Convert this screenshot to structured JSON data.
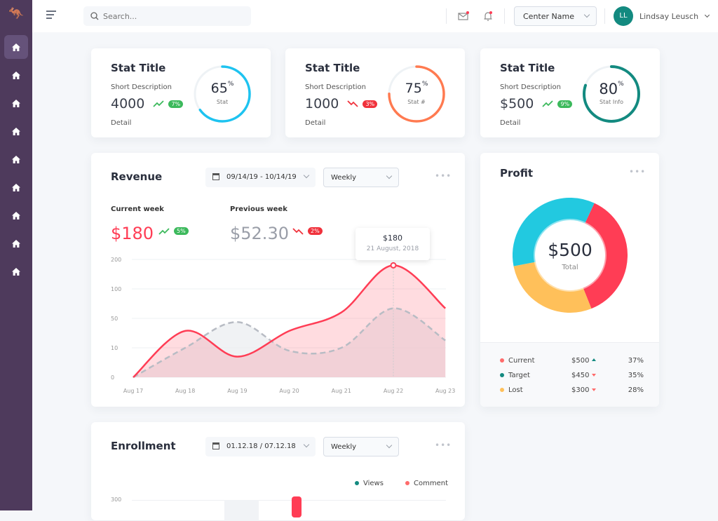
{
  "colors": {
    "sidebar": "#4e3a5c",
    "blue": "#1ec3f0",
    "orange": "#ff7a50",
    "teal": "#138a80",
    "red": "#ff3d55",
    "yellow": "#ffc05a",
    "cyan": "#22c9e0"
  },
  "sidebar": {
    "logo": "kangaroo-logo",
    "items": 9
  },
  "topbar": {
    "search_placeholder": "Search...",
    "center": "Center Name",
    "avatar": "LL",
    "user": "Lindsay Leusch"
  },
  "stats": [
    {
      "title": "Stat Title",
      "desc": "Short Description",
      "value": "4000",
      "trend": "up",
      "change": "7%",
      "detail": "Detail",
      "ring_value": "65",
      "ring_unit": "%",
      "ring_label": "Stat",
      "percent": 65,
      "color": "#1ec3f0"
    },
    {
      "title": "Stat Title",
      "desc": "Short Description",
      "value": "1000",
      "trend": "down",
      "change": "3%",
      "detail": "Detail",
      "ring_value": "75",
      "ring_unit": "%",
      "ring_label": "Stat #",
      "percent": 75,
      "color": "#ff7a50"
    },
    {
      "title": "Stat Title",
      "desc": "Short Description",
      "value": "$500",
      "trend": "up",
      "change": "9%",
      "detail": "Detail",
      "ring_value": "80",
      "ring_unit": "%",
      "ring_label": "Stat Info",
      "percent": 80,
      "color": "#138a80"
    }
  ],
  "revenue": {
    "title": "Revenue",
    "date_range": "09/14/19 - 10/14/19",
    "period": "Weekly",
    "current_label": "Current week",
    "current_value": "$180",
    "current_change": "5%",
    "previous_label": "Previous week",
    "previous_value": "$52.30",
    "previous_change": "2%",
    "tooltip_value": "$180",
    "tooltip_date": "21 August, 2018"
  },
  "profit": {
    "title": "Profit",
    "total": "$500",
    "total_label": "Total",
    "rows": [
      {
        "name": "Current",
        "value": "$500",
        "trend": "up",
        "pct": "37%",
        "percent": 37,
        "color": "#ff3d55"
      },
      {
        "name": "Target",
        "value": "$450",
        "trend": "down",
        "pct": "35%",
        "percent": 35,
        "color": "#22c9e0"
      },
      {
        "name": "Lost",
        "value": "$300",
        "trend": "down",
        "pct": "28%",
        "percent": 28,
        "color": "#ffc05a"
      }
    ]
  },
  "enrollment": {
    "title": "Enrollment",
    "date_range": "01.12.18 / 07.12.18",
    "period": "Weekly",
    "legend": [
      "Views",
      "Comment"
    ],
    "y_tick": "300"
  },
  "chart_data": {
    "type": "area",
    "x": [
      "Aug 17",
      "Aug 18",
      "Aug 19",
      "Aug 20",
      "Aug 21",
      "Aug 22",
      "Aug 23"
    ],
    "yticks": [
      "200",
      "100",
      "50",
      "10",
      "0"
    ],
    "yscale": "categorical-nonlinear",
    "grid": true,
    "series": [
      {
        "style": "solid",
        "color": "#ff3d55",
        "values": [
          0,
          33,
          7,
          33,
          60,
          180,
          67
        ]
      },
      {
        "style": "dashed",
        "color": "#b8bcc4",
        "values": [
          0,
          10,
          45,
          9,
          10,
          67,
          20
        ]
      }
    ]
  }
}
